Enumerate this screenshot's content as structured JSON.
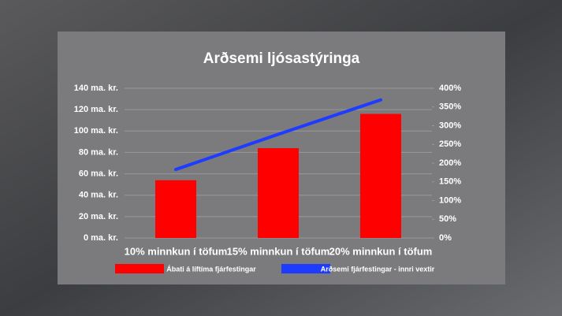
{
  "chart_data": {
    "type": "bar",
    "title": "Arðsemi ljósastýringa",
    "categories": [
      "10% minnkun í töfum",
      "15% minnkun í töfum",
      "20% minnkun í töfum"
    ],
    "series": [
      {
        "name": "Ábati á líftíma fjárfestingar",
        "color": "#ff0000",
        "type": "bar",
        "values": [
          54,
          84,
          116
        ]
      },
      {
        "name": "Arðsemi fjárfestingar - innri vextir",
        "color": "#1e3cff",
        "type": "line",
        "axis": "y2",
        "values": [
          183,
          277,
          369
        ]
      }
    ],
    "ylim": [
      0,
      140
    ],
    "yticks": [
      {
        "value": 0,
        "label": "0 ma. kr."
      },
      {
        "value": 20,
        "label": "20 ma. kr."
      },
      {
        "value": 40,
        "label": "40 ma. kr."
      },
      {
        "value": 60,
        "label": "60 ma. kr."
      },
      {
        "value": 80,
        "label": "80 ma. kr."
      },
      {
        "value": 100,
        "label": "100 ma. kr."
      },
      {
        "value": 120,
        "label": "120 ma. kr."
      },
      {
        "value": 140,
        "label": "140 ma. kr."
      }
    ],
    "y2lim": [
      0,
      400
    ],
    "y2ticks": [
      {
        "value": 0,
        "label": "0%"
      },
      {
        "value": 50,
        "label": "50%"
      },
      {
        "value": 100,
        "label": "100%"
      },
      {
        "value": 150,
        "label": "150%"
      },
      {
        "value": 200,
        "label": "200%"
      },
      {
        "value": 250,
        "label": "250%"
      },
      {
        "value": 300,
        "label": "300%"
      },
      {
        "value": 350,
        "label": "350%"
      },
      {
        "value": 400,
        "label": "400%"
      }
    ],
    "grid": true
  }
}
